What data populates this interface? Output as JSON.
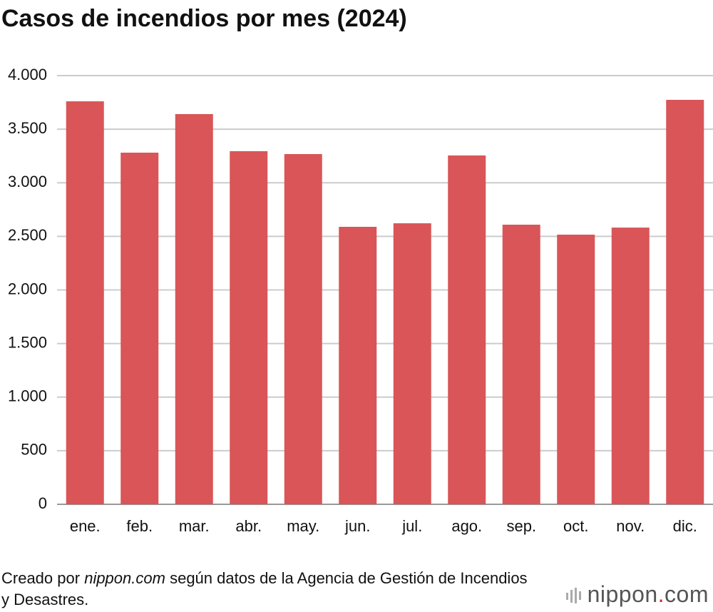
{
  "chart_data": {
    "type": "bar",
    "title": "Casos de incendios por mes (2024)",
    "categories": [
      "ene.",
      "feb.",
      "mar.",
      "abr.",
      "may.",
      "jun.",
      "jul.",
      "ago.",
      "sep.",
      "oct.",
      "nov.",
      "dic."
    ],
    "values": [
      3760,
      3281,
      3641,
      3295,
      3268,
      2589,
      2622,
      3255,
      2609,
      2516,
      2582,
      3774
    ],
    "color": "#d95557",
    "ylim": [
      0,
      4000
    ],
    "yticks": [
      0,
      500,
      {
        "value": 1000,
        "label": "1.000"
      },
      {
        "value": 1500,
        "label": "1.500"
      },
      {
        "value": 2000,
        "label": "2.000"
      },
      {
        "value": 2500,
        "label": "2.500"
      },
      {
        "value": 3000,
        "label": "3.000"
      },
      {
        "value": 3500,
        "label": "3.500"
      },
      {
        "value": 4000,
        "label": "4.000"
      }
    ],
    "grid": true,
    "source": [
      "Creado por",
      "nippon.com",
      "según datos de la Agencia de Gestión de Incendios y Desastres."
    ],
    "logo": [
      "nippon",
      ".",
      "com"
    ]
  }
}
